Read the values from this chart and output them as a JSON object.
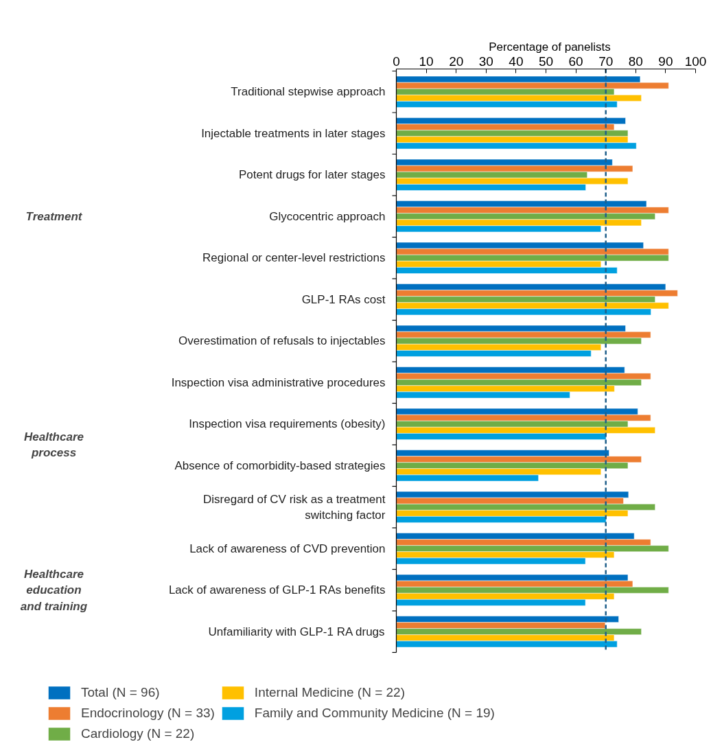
{
  "chart_data": {
    "type": "bar",
    "orientation": "horizontal",
    "xlabel": "Percentage of panelists",
    "categories": [
      "Traditional stepwise approach",
      "Injectable treatments in later stages",
      "Potent drugs for later stages",
      "Glycocentric approach",
      "Regional or center-level restrictions",
      "GLP-1 RAs cost",
      "Overestimation of refusals to injectables",
      "Inspection visa administrative procedures",
      "Inspection visa requirements (obesity)",
      "Absence of comorbidity-based strategies",
      "Disregard of CV risk as a treatment switching factor",
      "Lack of awareness of CVD prevention",
      "Lack of awareness of GLP-1 RAs benefits",
      "Unfamiliarity with GLP-1 RA drugs"
    ],
    "series": [
      {
        "name": "Total (N = 96)",
        "color": "#0070c0",
        "values": [
          81.5,
          76.6,
          72.2,
          83.6,
          82.6,
          90.0,
          76.6,
          76.3,
          80.7,
          71.1,
          77.6,
          79.5,
          77.4,
          74.3
        ]
      },
      {
        "name": "Endocrinology (N = 33)",
        "color": "#ed7d31",
        "values": [
          91.0,
          72.8,
          79.0,
          91.0,
          91.0,
          94.0,
          85.0,
          85.0,
          85.0,
          81.9,
          75.9,
          85.0,
          79.0,
          69.8
        ]
      },
      {
        "name": "Cardiology (N = 22)",
        "color": "#70ad47",
        "values": [
          72.8,
          77.4,
          63.8,
          86.5,
          91.0,
          86.5,
          81.9,
          81.9,
          77.4,
          77.4,
          86.5,
          91.0,
          91.0,
          81.9
        ]
      },
      {
        "name": "Internal Medicine (N = 22)",
        "color": "#ffc000",
        "values": [
          81.9,
          77.4,
          77.4,
          81.9,
          68.4,
          91.0,
          68.4,
          72.9,
          86.5,
          68.4,
          77.4,
          72.8,
          72.8,
          72.8
        ]
      },
      {
        "name": "Family and Community Medicine (N = 19)",
        "color": "#00a0e0",
        "values": [
          73.8,
          80.2,
          63.3,
          68.4,
          73.8,
          85.1,
          65.1,
          58.0,
          70.1,
          47.5,
          70.1,
          63.2,
          63.2,
          73.8
        ]
      }
    ],
    "xlim": [
      0,
      100
    ],
    "xticks": [
      0,
      10,
      20,
      30,
      40,
      50,
      60,
      70,
      80,
      90,
      100
    ],
    "ref_lines": [
      {
        "axis": "x",
        "value": 70,
        "color": "#1f5f8b",
        "line_style": "dashed"
      }
    ],
    "annotations": [
      "Treatment",
      "Healthcare process",
      "Healthcare education and training"
    ],
    "grid": false,
    "legend": "bottom"
  }
}
